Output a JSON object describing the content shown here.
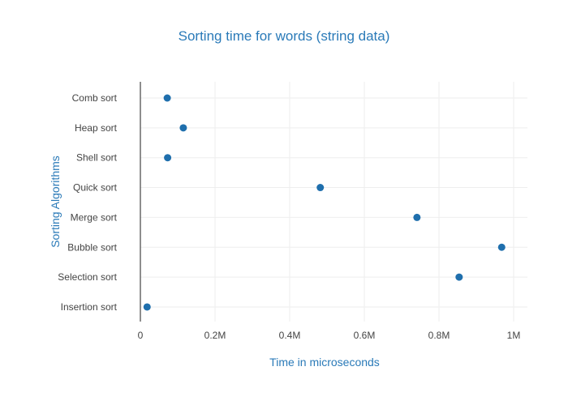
{
  "chart_data": {
    "type": "scatter",
    "title": "Sorting time for words (string data)",
    "xlabel": "Time in microseconds",
    "ylabel": "Sorting Algorithms",
    "categories": [
      "Comb sort",
      "Heap sort",
      "Shell sort",
      "Quick sort",
      "Merge sort",
      "Bubble sort",
      "Selection sort",
      "Insertion sort"
    ],
    "values": [
      72000,
      115000,
      73000,
      482000,
      741000,
      968000,
      854000,
      18000
    ],
    "x_ticks": [
      0,
      200000,
      400000,
      600000,
      800000,
      1000000
    ],
    "x_tick_labels": [
      "0",
      "0.2M",
      "0.4M",
      "0.6M",
      "0.8M",
      "1M"
    ],
    "xlim": [
      0,
      1000000
    ],
    "grid": true,
    "colors": {
      "marker": "#1f6fad",
      "title": "#2a7ab8",
      "axis_title": "#2a7ab8",
      "grid": "#eeeeee",
      "zero_line": "#444444"
    }
  }
}
